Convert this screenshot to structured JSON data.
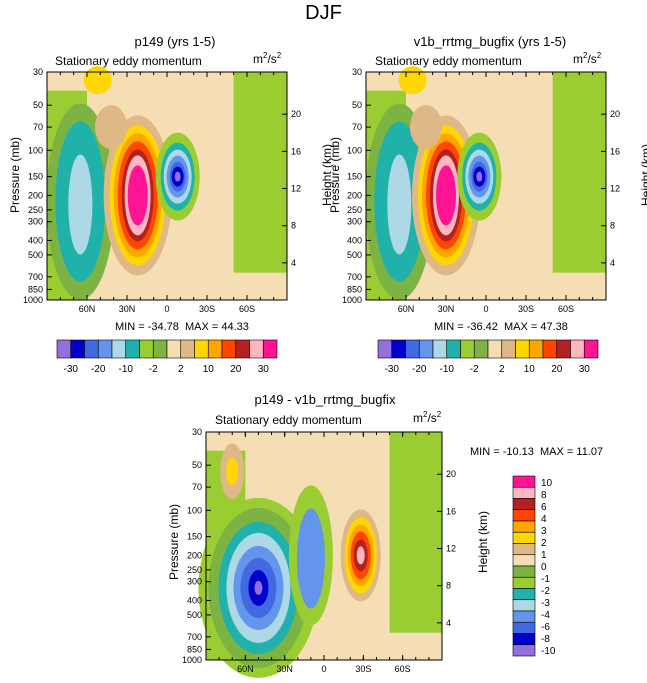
{
  "figure": {
    "title": "DJF",
    "variable": "Stationary eddy momentum",
    "units_base": "m",
    "units_exp": "2",
    "units_tail": "/s",
    "units_exp2": "2"
  },
  "colors": {
    "levels_main": [
      "#9370db",
      "#0000cd",
      "#4169e1",
      "#6495ed",
      "#add8e6",
      "#20b2aa",
      "#9acd32",
      "#7cb342",
      "#f5deb3",
      "#deb887",
      "#ffd700",
      "#ffa500",
      "#ff4500",
      "#b22222",
      "#ffb6c1",
      "#ff1493"
    ],
    "levels_diff": [
      "#9370db",
      "#0000cd",
      "#4169e1",
      "#6495ed",
      "#add8e6",
      "#20b2aa",
      "#9acd32",
      "#7cb342",
      "#f5deb3",
      "#deb887",
      "#ffd700",
      "#ffa500",
      "#ff4500",
      "#b22222",
      "#ffb6c1",
      "#ff1493"
    ]
  },
  "chart_data": [
    {
      "type": "heatmap",
      "title": "p149 (yrs 1-5)",
      "subtitle": "Stationary eddy momentum",
      "xlabel": "",
      "ylabel": "Pressure (mb)",
      "ylabel_right": "Height (km)",
      "x_ticks": [
        "60N",
        "30N",
        "0",
        "30S",
        "60S"
      ],
      "y_ticks": [
        "30",
        "50",
        "70",
        "100",
        "150",
        "200",
        "250",
        "300",
        "400",
        "500",
        "700",
        "850",
        "1000"
      ],
      "y_right_ticks": [
        "20",
        "16",
        "12",
        "8",
        "4"
      ],
      "xlim": [
        90,
        -90
      ],
      "ylim": [
        1000,
        30
      ],
      "min_label": "MIN = -34.78",
      "max_label": "MAX =  44.33",
      "min": -34.78,
      "max": 44.33,
      "features": [
        {
          "lat": 22,
          "p": 200,
          "value": 44.33,
          "sign": "positive"
        },
        {
          "lat": -8,
          "p": 150,
          "value": -34.78,
          "sign": "negative"
        },
        {
          "lat": 65,
          "p": 220,
          "value": -12,
          "sign": "negative"
        }
      ]
    },
    {
      "type": "heatmap",
      "title": "v1b_rrtmg_bugfix (yrs 1-5)",
      "subtitle": "Stationary eddy momentum",
      "xlabel": "",
      "ylabel": "Pressure (mb)",
      "ylabel_right": "Height (km)",
      "x_ticks": [
        "60N",
        "30N",
        "0",
        "30S",
        "60S"
      ],
      "y_ticks": [
        "30",
        "50",
        "70",
        "100",
        "150",
        "200",
        "250",
        "300",
        "400",
        "500",
        "700",
        "850",
        "1000"
      ],
      "y_right_ticks": [
        "20",
        "16",
        "12",
        "8",
        "4"
      ],
      "xlim": [
        90,
        -90
      ],
      "ylim": [
        1000,
        30
      ],
      "min_label": "MIN = -36.42",
      "max_label": "MAX =  47.38",
      "min": -36.42,
      "max": 47.38,
      "features": [
        {
          "lat": 30,
          "p": 200,
          "value": 47.38,
          "sign": "positive"
        },
        {
          "lat": 5,
          "p": 150,
          "value": -36.42,
          "sign": "negative"
        },
        {
          "lat": 65,
          "p": 200,
          "value": -12,
          "sign": "negative"
        }
      ]
    },
    {
      "type": "heatmap",
      "title": "p149 - v1b_rrtmg_bugfix",
      "subtitle": "Stationary eddy momentum",
      "xlabel": "",
      "ylabel": "Pressure (mb)",
      "ylabel_right": "Height (km)",
      "x_ticks": [
        "60N",
        "30N",
        "0",
        "30S",
        "60S"
      ],
      "y_ticks": [
        "30",
        "50",
        "70",
        "100",
        "150",
        "200",
        "250",
        "300",
        "400",
        "500",
        "700",
        "850",
        "1000"
      ],
      "y_right_ticks": [
        "20",
        "16",
        "12",
        "8",
        "4"
      ],
      "xlim": [
        90,
        -90
      ],
      "ylim": [
        1000,
        30
      ],
      "min_label": "MIN = -10.13",
      "max_label": "MAX =  11.07",
      "min": -10.13,
      "max": 11.07,
      "features": [
        {
          "lat": -28,
          "p": 200,
          "value": 11.07,
          "sign": "positive"
        },
        {
          "lat": 50,
          "p": 330,
          "value": -10.13,
          "sign": "negative"
        },
        {
          "lat": 70,
          "p": 55,
          "value": 4,
          "sign": "positive"
        }
      ]
    }
  ],
  "colorbars": {
    "main": {
      "labels": [
        "-30",
        "-20",
        "-10",
        "-2",
        "2",
        "10",
        "20",
        "30"
      ]
    },
    "diff": {
      "labels": [
        "10",
        "8",
        "6",
        "4",
        "3",
        "2",
        "1",
        "0",
        "-1",
        "-2",
        "-3",
        "-4",
        "-6",
        "-8",
        "-10"
      ]
    }
  }
}
